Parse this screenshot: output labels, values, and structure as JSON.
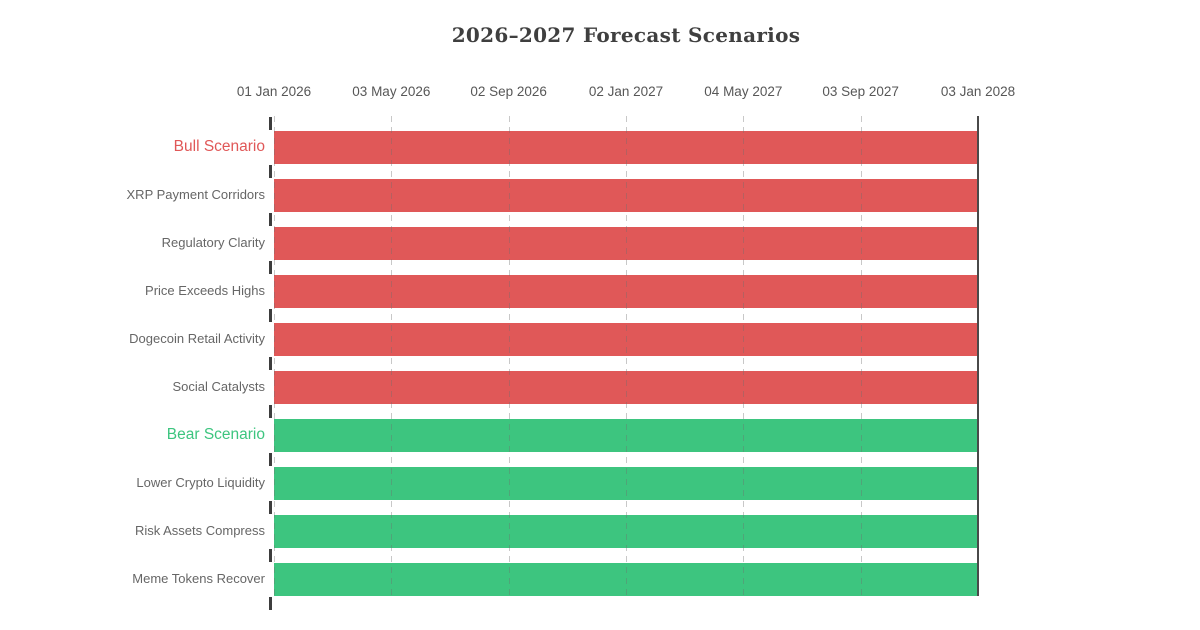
{
  "chart_data": {
    "type": "gantt",
    "title": "2026–2027 Forecast Scenarios",
    "x_axis": {
      "position": "top",
      "grid_style": "dashed",
      "tick_labels": [
        "01 Jan 2026",
        "03 May 2026",
        "02 Sep 2026",
        "02 Jan 2027",
        "04 May 2027",
        "03 Sep 2027",
        "03 Jan 2028"
      ]
    },
    "tasks": [
      {
        "label": "Bull Scenario",
        "group_header": true,
        "group": "bull",
        "start": "01 Jan 2026",
        "end": "03 Jan 2028"
      },
      {
        "label": "XRP Payment Corridors",
        "group_header": false,
        "group": "bull",
        "start": "01 Jan 2026",
        "end": "03 Jan 2028"
      },
      {
        "label": "Regulatory Clarity",
        "group_header": false,
        "group": "bull",
        "start": "01 Jan 2026",
        "end": "03 Jan 2028"
      },
      {
        "label": "Price Exceeds Highs",
        "group_header": false,
        "group": "bull",
        "start": "01 Jan 2026",
        "end": "03 Jan 2028"
      },
      {
        "label": "Dogecoin Retail Activity",
        "group_header": false,
        "group": "bull",
        "start": "01 Jan 2026",
        "end": "03 Jan 2028"
      },
      {
        "label": "Social Catalysts",
        "group_header": false,
        "group": "bull",
        "start": "01 Jan 2026",
        "end": "03 Jan 2028"
      },
      {
        "label": "Bear Scenario",
        "group_header": true,
        "group": "bear",
        "start": "01 Jan 2026",
        "end": "03 Jan 2028"
      },
      {
        "label": "Lower Crypto Liquidity",
        "group_header": false,
        "group": "bear",
        "start": "01 Jan 2026",
        "end": "03 Jan 2028"
      },
      {
        "label": "Risk Assets Compress",
        "group_header": false,
        "group": "bear",
        "start": "01 Jan 2026",
        "end": "03 Jan 2028"
      },
      {
        "label": "Meme Tokens Recover",
        "group_header": false,
        "group": "bear",
        "start": "01 Jan 2026",
        "end": "03 Jan 2028"
      }
    ],
    "colors": {
      "bull": "#e05858",
      "bear": "#3dc57f",
      "task_label": "#666666",
      "title": "#3f3f3f",
      "axis_label": "#575757",
      "grid": "#c8c8c8",
      "axis_line": "#4a4a4a",
      "tick": "#3d3d3d"
    }
  }
}
